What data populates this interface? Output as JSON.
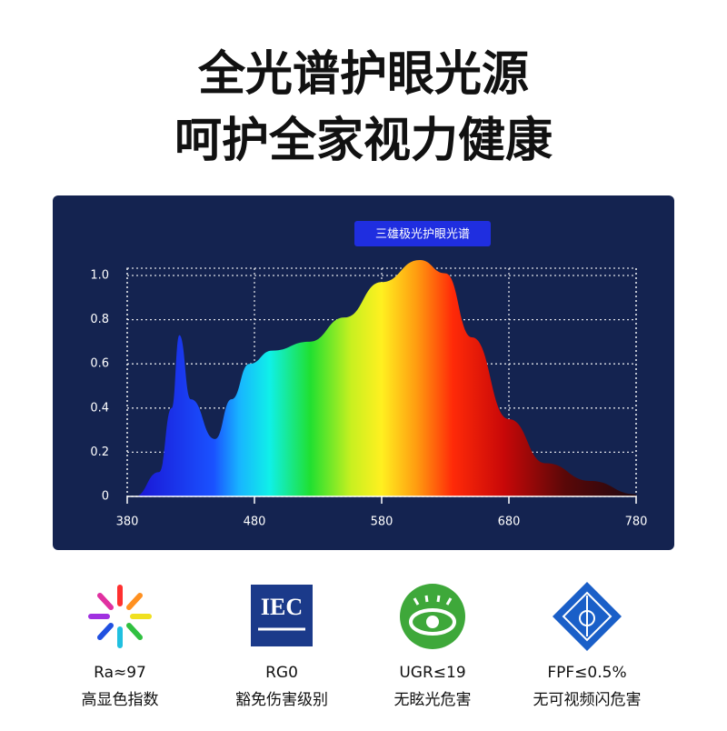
{
  "header": {
    "line1": "全光谱护眼光源",
    "line2": "呵护全家视力健康"
  },
  "chart_data": {
    "type": "area",
    "title": "三雄极光护眼光谱",
    "x": [
      386,
      405,
      415,
      421,
      430,
      449,
      462,
      476,
      494,
      523,
      551,
      580,
      610,
      630,
      651,
      680,
      709,
      744,
      780
    ],
    "values": [
      0,
      0.11,
      0.4,
      0.73,
      0.44,
      0.26,
      0.44,
      0.6,
      0.66,
      0.7,
      0.81,
      0.97,
      1.07,
      1.01,
      0.72,
      0.35,
      0.15,
      0.07,
      0.01
    ],
    "xlim": [
      380,
      780
    ],
    "xticks": [
      380,
      480,
      580,
      680,
      780
    ],
    "ylim": [
      0,
      1
    ],
    "yticks": [
      0,
      0.2,
      0.4,
      0.6,
      {
        "value": 1,
        "label": "1.0"
      },
      0.8
    ],
    "grid": true
  },
  "badges": [
    {
      "label": "Ra≈97",
      "caption": "高显色指数"
    },
    {
      "label": "RG0",
      "caption": "豁免伤害级别"
    },
    {
      "label": "UGR≤19",
      "caption": "无眩光危害"
    },
    {
      "label": "FPF≤0.5%",
      "caption": "无可视频闪危害"
    }
  ]
}
